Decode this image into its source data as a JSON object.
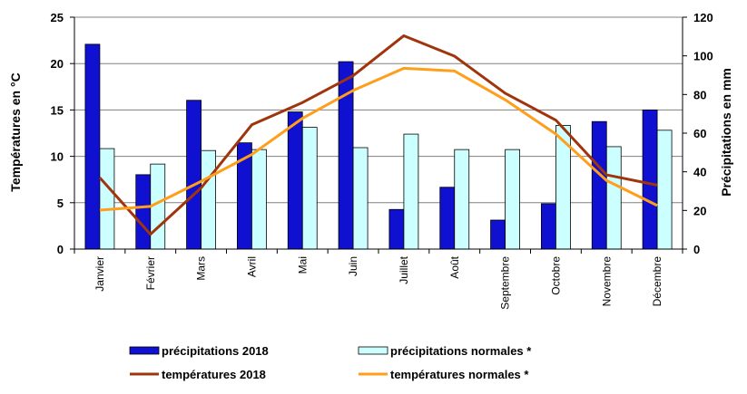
{
  "chart_data": {
    "type": "bar",
    "categories": [
      "Janvier",
      "Février",
      "Mars",
      "Avril",
      "Mai",
      "Juin",
      "Juillet",
      "Août",
      "Septembre",
      "Octobre",
      "Novembre",
      "Décembre"
    ],
    "series": [
      {
        "name": "précipitations 2018",
        "kind": "bar",
        "axis": "right",
        "color": "#1010D0",
        "values": [
          106,
          38.5,
          77,
          55,
          71,
          97,
          20.5,
          32,
          15,
          23.5,
          66,
          72
        ]
      },
      {
        "name": "précipitations normales *",
        "kind": "bar",
        "axis": "right",
        "color": "#CCFFFF",
        "values": [
          52,
          44,
          51,
          51.5,
          63,
          52.5,
          59.5,
          51.5,
          51.5,
          64,
          53,
          61.5
        ]
      },
      {
        "name": "températures 2018",
        "kind": "line",
        "axis": "left",
        "color": "#A0340C",
        "values": [
          7.7,
          1.6,
          6.6,
          13.4,
          15.8,
          18.7,
          23,
          20.8,
          16.8,
          13.9,
          8,
          6.9
        ]
      },
      {
        "name": "températures normales *",
        "kind": "line",
        "axis": "left",
        "color": "#FF9E1B",
        "values": [
          4.2,
          4.6,
          7.3,
          10.2,
          14.1,
          17.1,
          19.5,
          19.2,
          16.1,
          12.4,
          7.4,
          4.7
        ]
      }
    ],
    "y_left": {
      "label": "Températures en °C",
      "min": 0,
      "max": 25,
      "ticks": [
        "0",
        "5",
        "10",
        "15",
        "20",
        "25"
      ]
    },
    "y_right": {
      "label": "Précipitations en mm",
      "min": 0,
      "max": 120,
      "ticks": [
        "0",
        "20",
        "40",
        "60",
        "80",
        "100",
        "120"
      ]
    },
    "grid": true,
    "legend_position": "bottom"
  }
}
